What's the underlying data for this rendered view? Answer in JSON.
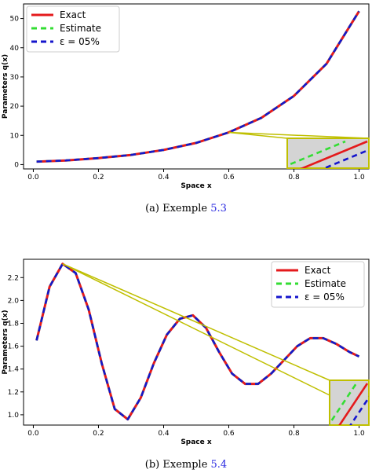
{
  "chart_data": [
    {
      "type": "line",
      "xlabel": "Space x",
      "ylabel": "Parameters q(x)",
      "xlim": [
        -0.03,
        1.03
      ],
      "ylim": [
        -1.5,
        55
      ],
      "xticks": [
        0.0,
        0.2,
        0.4,
        0.6,
        0.8,
        1.0
      ],
      "xtick_labels": [
        "0.0",
        "0.2",
        "0.4",
        "0.6",
        "0.8",
        "1.0"
      ],
      "yticks": [
        0,
        10,
        20,
        30,
        40,
        50
      ],
      "ytick_labels": [
        "0",
        "10",
        "20",
        "30",
        "40",
        "50"
      ],
      "x": [
        0.01,
        0.1,
        0.2,
        0.3,
        0.4,
        0.5,
        0.6,
        0.7,
        0.8,
        0.9,
        1.0
      ],
      "series": [
        {
          "name": "Exact",
          "color": "#e41a1c",
          "dash": "solid",
          "values": [
            1.0,
            1.4,
            2.2,
            3.3,
            5.0,
            7.4,
            11.0,
            16.0,
            23.5,
            34.5,
            52.5
          ]
        },
        {
          "name": "Estimate",
          "color": "#33dd33",
          "dash": "dashed",
          "values": [
            1.0,
            1.4,
            2.2,
            3.3,
            5.0,
            7.4,
            11.0,
            16.0,
            23.5,
            34.5,
            52.5
          ]
        },
        {
          "name": "ε = 05%",
          "color": "#1515cc",
          "dash": "dashed",
          "values": [
            1.0,
            1.4,
            2.2,
            3.3,
            5.0,
            7.4,
            11.0,
            16.0,
            23.5,
            34.5,
            52.5
          ]
        }
      ],
      "legend_position": "upper-left",
      "grid": false,
      "inset": {
        "position": "lower-right",
        "zoom_center": [
          0.6,
          11.0
        ],
        "color": "#bfbf00",
        "fill": "#d4d4d4"
      }
    },
    {
      "type": "line",
      "xlabel": "Space x",
      "ylabel": "Parameters q(x)",
      "xlim": [
        -0.03,
        1.03
      ],
      "ylim": [
        0.91,
        2.36
      ],
      "xticks": [
        0.0,
        0.2,
        0.4,
        0.6,
        0.8,
        1.0
      ],
      "xtick_labels": [
        "0.0",
        "0.2",
        "0.4",
        "0.6",
        "0.8",
        "1.0"
      ],
      "yticks": [
        1.0,
        1.2,
        1.4,
        1.6,
        1.8,
        2.0,
        2.2
      ],
      "ytick_labels": [
        "1.0",
        "1.2",
        "1.4",
        "1.6",
        "1.8",
        "2.0",
        "2.2"
      ],
      "x": [
        0.01,
        0.05,
        0.09,
        0.13,
        0.17,
        0.21,
        0.25,
        0.29,
        0.33,
        0.37,
        0.41,
        0.45,
        0.49,
        0.53,
        0.57,
        0.61,
        0.65,
        0.69,
        0.73,
        0.77,
        0.81,
        0.85,
        0.89,
        0.93,
        0.97,
        1.0
      ],
      "series": [
        {
          "name": "Exact",
          "color": "#e41a1c",
          "dash": "solid",
          "values": [
            1.65,
            2.12,
            2.32,
            2.24,
            1.92,
            1.45,
            1.05,
            0.96,
            1.15,
            1.45,
            1.7,
            1.84,
            1.87,
            1.76,
            1.55,
            1.36,
            1.27,
            1.27,
            1.36,
            1.48,
            1.6,
            1.67,
            1.67,
            1.62,
            1.55,
            1.51
          ]
        },
        {
          "name": "Estimate",
          "color": "#33dd33",
          "dash": "dashed",
          "values": [
            1.65,
            2.12,
            2.32,
            2.24,
            1.92,
            1.45,
            1.05,
            0.96,
            1.15,
            1.45,
            1.7,
            1.84,
            1.87,
            1.76,
            1.55,
            1.36,
            1.27,
            1.27,
            1.36,
            1.48,
            1.6,
            1.67,
            1.67,
            1.62,
            1.55,
            1.51
          ]
        },
        {
          "name": "ε = 05%",
          "color": "#1515cc",
          "dash": "dashed",
          "values": [
            1.65,
            2.12,
            2.32,
            2.24,
            1.92,
            1.45,
            1.05,
            0.96,
            1.15,
            1.45,
            1.7,
            1.84,
            1.87,
            1.76,
            1.55,
            1.36,
            1.27,
            1.27,
            1.36,
            1.48,
            1.6,
            1.67,
            1.67,
            1.62,
            1.55,
            1.51
          ]
        }
      ],
      "legend_position": "upper-right",
      "grid": false,
      "inset": {
        "position": "lower-right",
        "zoom_center": [
          0.09,
          2.27
        ],
        "color": "#bfbf00",
        "fill": "#d4d4d4"
      }
    }
  ],
  "captions": [
    {
      "prefix": "(a) Exemple ",
      "ref": "5.3"
    },
    {
      "prefix": "(b) Exemple ",
      "ref": "5.4"
    }
  ],
  "colors": {
    "ref_link": "#2a2ae0",
    "axes": "#000000"
  }
}
